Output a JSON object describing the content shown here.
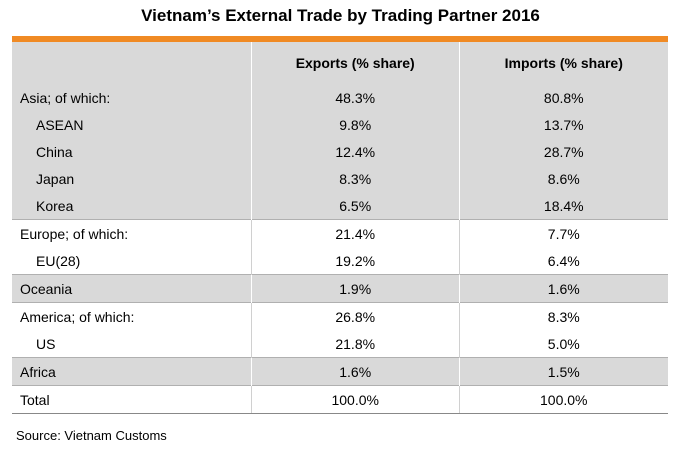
{
  "title": "Vietnam’s External Trade by Trading Partner 2016",
  "colors": {
    "accent": "#f08a24",
    "row_shade": "#d9d9d9"
  },
  "columns": [
    "",
    "Exports (% share)",
    "Imports (% share)"
  ],
  "rows": [
    {
      "label": "Asia; of which:",
      "exports": "48.3%",
      "imports": "80.8%"
    },
    {
      "label": "ASEAN",
      "exports": "9.8%",
      "imports": "13.7%"
    },
    {
      "label": "China",
      "exports": "12.4%",
      "imports": "28.7%"
    },
    {
      "label": "Japan",
      "exports": "8.3%",
      "imports": "8.6%"
    },
    {
      "label": "Korea",
      "exports": "6.5%",
      "imports": "18.4%"
    },
    {
      "label": "Europe;  of which:",
      "exports": "21.4%",
      "imports": "7.7%"
    },
    {
      "label": "EU(28)",
      "exports": "19.2%",
      "imports": "6.4%"
    },
    {
      "label": "Oceania",
      "exports": "1.9%",
      "imports": "1.6%"
    },
    {
      "label": "America;  of which:",
      "exports": "26.8%",
      "imports": "8.3%"
    },
    {
      "label": "US",
      "exports": "21.8%",
      "imports": "5.0%"
    },
    {
      "label": "Africa",
      "exports": "1.6%",
      "imports": "1.5%"
    },
    {
      "label": "Total",
      "exports": "100.0%",
      "imports": "100.0%"
    }
  ],
  "source": "Source: Vietnam Customs"
}
